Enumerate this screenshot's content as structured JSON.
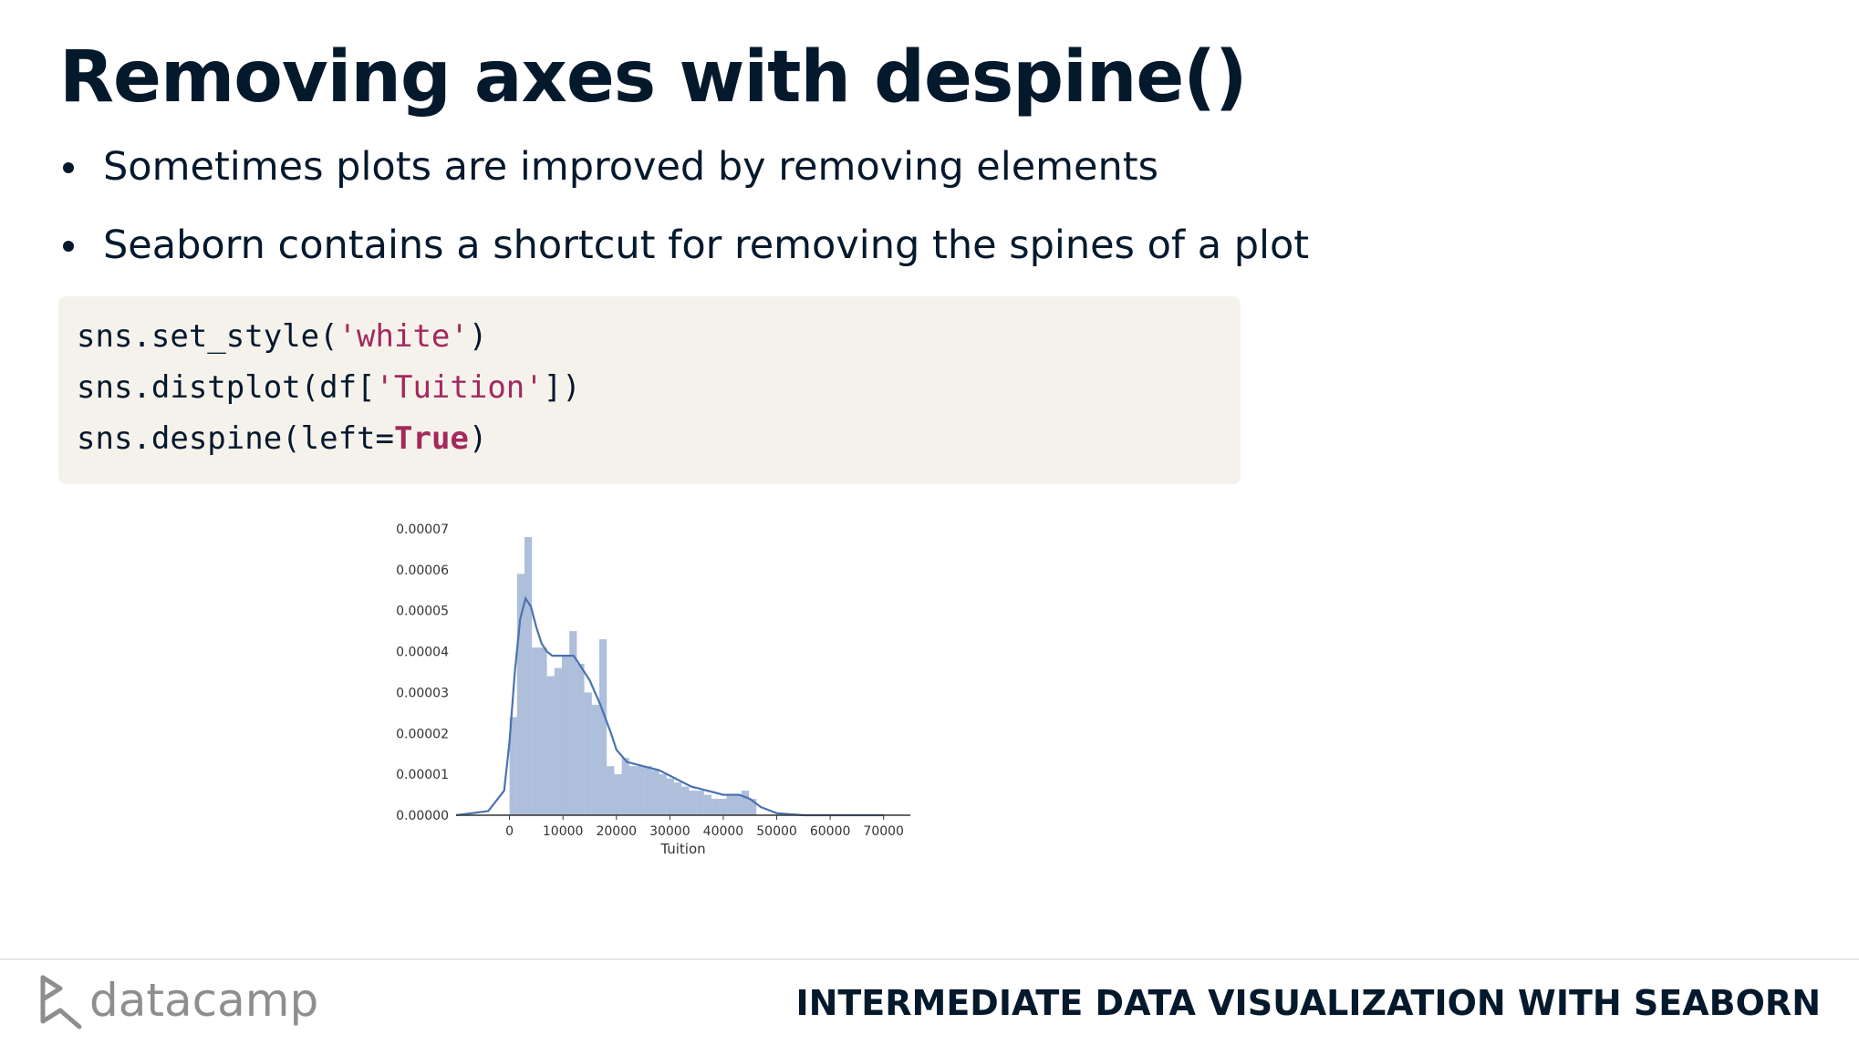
{
  "slide": {
    "title": "Removing axes with despine()",
    "bullets": [
      "Sometimes plots are improved by removing elements",
      "Seaborn contains a shortcut for removing the spines of a plot"
    ]
  },
  "code": {
    "lines": [
      [
        {
          "t": "sns.set_style(",
          "k": "plain"
        },
        {
          "t": "'white'",
          "k": "str"
        },
        {
          "t": ")",
          "k": "plain"
        }
      ],
      [
        {
          "t": "sns.distplot(df[",
          "k": "plain"
        },
        {
          "t": "'Tuition'",
          "k": "str"
        },
        {
          "t": "])",
          "k": "plain"
        }
      ],
      [
        {
          "t": "sns.despine(left=",
          "k": "plain"
        },
        {
          "t": "True",
          "k": "kw"
        },
        {
          "t": ")",
          "k": "plain"
        }
      ]
    ]
  },
  "chart_data": {
    "type": "bar",
    "subtype": "histogram-with-kde",
    "xlabel": "Tuition",
    "ylabel": "",
    "xlim": [
      -10000,
      75000
    ],
    "ylim": [
      0,
      7e-05
    ],
    "xticks": [
      0,
      10000,
      20000,
      30000,
      40000,
      50000,
      60000,
      70000
    ],
    "yticks": [
      "0.00000",
      "0.00001",
      "0.00002",
      "0.00003",
      "0.00004",
      "0.00005",
      "0.00006",
      "0.00007"
    ],
    "spines": {
      "left": false,
      "top": false,
      "right": false,
      "bottom": true
    },
    "bin_width": 1400,
    "bins": [
      {
        "x": 0,
        "y": 2.4e-05
      },
      {
        "x": 1400,
        "y": 5.9e-05
      },
      {
        "x": 2800,
        "y": 6.8e-05
      },
      {
        "x": 4200,
        "y": 4.1e-05
      },
      {
        "x": 5600,
        "y": 4.1e-05
      },
      {
        "x": 7000,
        "y": 3.4e-05
      },
      {
        "x": 8400,
        "y": 3.6e-05
      },
      {
        "x": 9800,
        "y": 3.9e-05
      },
      {
        "x": 11200,
        "y": 4.5e-05
      },
      {
        "x": 12600,
        "y": 3.7e-05
      },
      {
        "x": 14000,
        "y": 3e-05
      },
      {
        "x": 15400,
        "y": 2.7e-05
      },
      {
        "x": 16800,
        "y": 4.3e-05
      },
      {
        "x": 18200,
        "y": 1.2e-05
      },
      {
        "x": 19600,
        "y": 1e-05
      },
      {
        "x": 21000,
        "y": 1.4e-05
      },
      {
        "x": 22400,
        "y": 1.2e-05
      },
      {
        "x": 23800,
        "y": 1.2e-05
      },
      {
        "x": 25200,
        "y": 1.2e-05
      },
      {
        "x": 26600,
        "y": 1.1e-05
      },
      {
        "x": 28000,
        "y": 1e-05
      },
      {
        "x": 29400,
        "y": 9e-06
      },
      {
        "x": 30800,
        "y": 8e-06
      },
      {
        "x": 32200,
        "y": 7e-06
      },
      {
        "x": 33600,
        "y": 6e-06
      },
      {
        "x": 35000,
        "y": 6e-06
      },
      {
        "x": 36400,
        "y": 5e-06
      },
      {
        "x": 37800,
        "y": 4e-06
      },
      {
        "x": 39200,
        "y": 4e-06
      },
      {
        "x": 40600,
        "y": 5e-06
      },
      {
        "x": 42000,
        "y": 5e-06
      },
      {
        "x": 43400,
        "y": 6e-06
      },
      {
        "x": 44800,
        "y": 4e-06
      }
    ],
    "kde": [
      [
        -10000,
        0.0
      ],
      [
        -4000,
        1e-06
      ],
      [
        -1000,
        6e-06
      ],
      [
        0,
        1.8e-05
      ],
      [
        1000,
        3.5e-05
      ],
      [
        2000,
        4.8e-05
      ],
      [
        3000,
        5.3e-05
      ],
      [
        4000,
        5.1e-05
      ],
      [
        5000,
        4.6e-05
      ],
      [
        6000,
        4.2e-05
      ],
      [
        7000,
        4e-05
      ],
      [
        8000,
        3.9e-05
      ],
      [
        10000,
        3.9e-05
      ],
      [
        12000,
        3.9e-05
      ],
      [
        13000,
        3.7e-05
      ],
      [
        15000,
        3.3e-05
      ],
      [
        17000,
        2.7e-05
      ],
      [
        19000,
        2e-05
      ],
      [
        20000,
        1.6e-05
      ],
      [
        22000,
        1.3e-05
      ],
      [
        25000,
        1.2e-05
      ],
      [
        28000,
        1.1e-05
      ],
      [
        31000,
        9e-06
      ],
      [
        34000,
        7e-06
      ],
      [
        37000,
        6e-06
      ],
      [
        40000,
        5e-06
      ],
      [
        43000,
        5e-06
      ],
      [
        45000,
        4e-06
      ],
      [
        47000,
        2e-06
      ],
      [
        50000,
        5e-07
      ],
      [
        55000,
        0.0
      ],
      [
        70000,
        0.0
      ]
    ],
    "color": "#4c72b0"
  },
  "footer": {
    "logo_text": "datacamp",
    "course_title": "INTERMEDIATE DATA VISUALIZATION WITH SEABORN"
  }
}
